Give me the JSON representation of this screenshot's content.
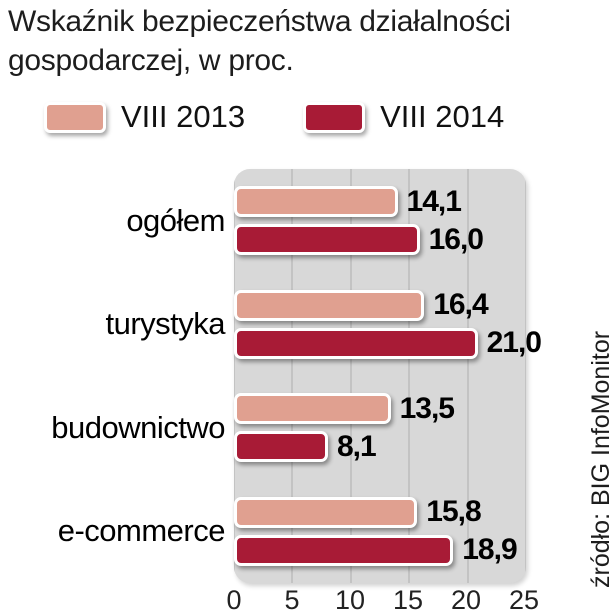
{
  "chart_data": {
    "type": "bar",
    "orientation": "horizontal",
    "title": "Wskaźnik bezpieczeństwa działalności gospodarczej, w proc.",
    "categories": [
      "ogółem",
      "turystyka",
      "budownictwo",
      "e-commerce"
    ],
    "series": [
      {
        "name": "VIII 2013",
        "color": "#e0a090",
        "values": [
          14.1,
          16.4,
          13.5,
          15.8
        ],
        "value_labels": [
          "14,1",
          "16,4",
          "13,5",
          "15,8"
        ]
      },
      {
        "name": "VIII 2014",
        "color": "#a81b36",
        "values": [
          16.0,
          21.0,
          8.1,
          18.9
        ],
        "value_labels": [
          "16,0",
          "21,0",
          "8,1",
          "18,9"
        ]
      }
    ],
    "xlim": [
      0,
      25
    ],
    "xticks": [
      "0",
      "5",
      "10",
      "15",
      "20",
      "25"
    ],
    "grid": true,
    "legend_position": "top",
    "plot_background": "#d8d8d8",
    "gridline_color": "#c3c3c3",
    "source": "źródło: BIG InfoMonitor"
  }
}
